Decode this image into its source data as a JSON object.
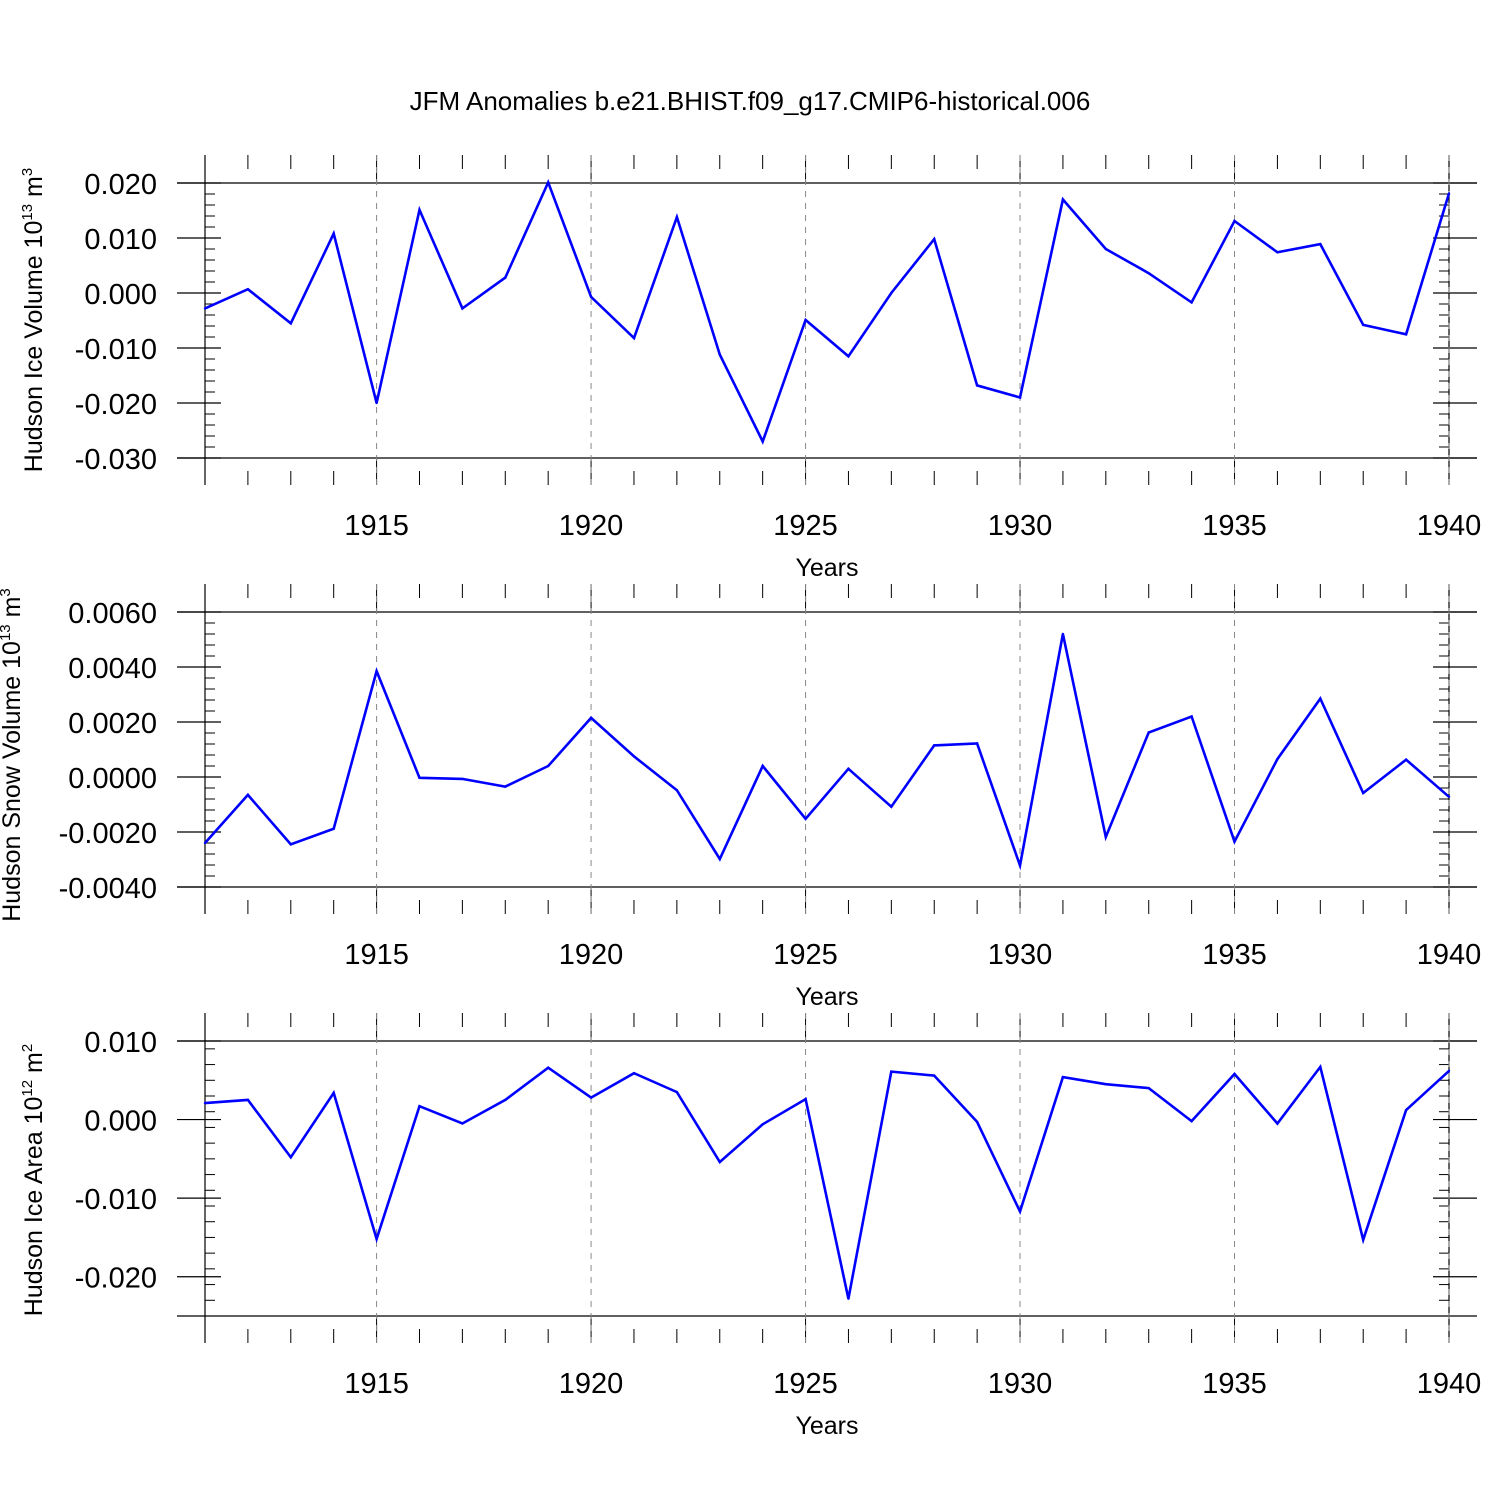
{
  "title": "JFM Anomalies b.e21.BHIST.f09_g17.CMIP6-historical.006",
  "colors": {
    "series": "#0000ff",
    "axis": "#000000",
    "grid": "#888888"
  },
  "chart_data": [
    {
      "type": "line",
      "xlabel": "Years",
      "ylabel": {
        "main": "Hudson Ice Volume 10",
        "exp": "13",
        "unit": " m",
        "unit_exp": "3"
      },
      "xlim": [
        1911,
        1940
      ],
      "ylim": [
        -0.03,
        0.02
      ],
      "xticks": [
        1915,
        1920,
        1925,
        1930,
        1935,
        1940
      ],
      "xtick_labels": [
        "1915",
        "1920",
        "1925",
        "1930",
        "1935",
        "1940"
      ],
      "yticks": [
        -0.03,
        -0.02,
        -0.01,
        0.0,
        0.01,
        0.02
      ],
      "ytick_labels": [
        "-0.030",
        "-0.020",
        "-0.010",
        "0.000",
        "0.010",
        "0.020"
      ],
      "grid": "dashed vertical at labeled years",
      "series": [
        {
          "name": "Hudson Ice Volume",
          "x": [
            1911,
            1912,
            1913,
            1914,
            1915,
            1916,
            1917,
            1918,
            1919,
            1920,
            1921,
            1922,
            1923,
            1924,
            1925,
            1926,
            1927,
            1928,
            1929,
            1930,
            1931,
            1932,
            1933,
            1934,
            1935,
            1936,
            1937,
            1938,
            1939,
            1940
          ],
          "values": [
            -0.0028,
            0.0007,
            -0.0055,
            0.0108,
            -0.02,
            0.0151,
            -0.0028,
            0.0028,
            0.0201,
            -0.0007,
            -0.0082,
            0.0138,
            -0.0112,
            -0.027,
            -0.0049,
            -0.0115,
            0.0,
            0.0098,
            -0.0168,
            -0.019,
            0.017,
            0.008,
            0.0036,
            -0.0017,
            0.0131,
            0.0074,
            0.0089,
            -0.0058,
            -0.0075,
            0.0181
          ]
        }
      ]
    },
    {
      "type": "line",
      "xlabel": "Years",
      "ylabel": {
        "main": "Hudson Snow Volume 10",
        "exp": "13",
        "unit": " m",
        "unit_exp": "3"
      },
      "xlim": [
        1911,
        1940
      ],
      "ylim": [
        -0.004,
        0.006
      ],
      "xticks": [
        1915,
        1920,
        1925,
        1930,
        1935,
        1940
      ],
      "xtick_labels": [
        "1915",
        "1920",
        "1925",
        "1930",
        "1935",
        "1940"
      ],
      "yticks": [
        -0.004,
        -0.002,
        0.0,
        0.002,
        0.004,
        0.006
      ],
      "ytick_labels": [
        "-0.0040",
        "-0.0020",
        "0.0000",
        "0.0020",
        "0.0040",
        "0.0060"
      ],
      "grid": "dashed vertical at labeled years",
      "series": [
        {
          "name": "Hudson Snow Volume",
          "x": [
            1911,
            1912,
            1913,
            1914,
            1915,
            1916,
            1917,
            1918,
            1919,
            1920,
            1921,
            1922,
            1923,
            1924,
            1925,
            1926,
            1927,
            1928,
            1929,
            1930,
            1931,
            1932,
            1933,
            1934,
            1935,
            1936,
            1937,
            1938,
            1939,
            1940
          ],
          "values": [
            -0.0024,
            -0.00065,
            -0.00245,
            -0.00188,
            0.00385,
            -3e-05,
            -7e-05,
            -0.00035,
            0.0004,
            0.00215,
            0.00075,
            -0.00048,
            -0.00298,
            0.0004,
            -0.00152,
            0.0003,
            -0.00108,
            0.00115,
            0.00122,
            -0.00322,
            0.0052,
            -0.00218,
            0.00162,
            0.0022,
            -0.00235,
            0.00065,
            0.00285,
            -0.00058,
            0.00063,
            -0.00072
          ]
        }
      ]
    },
    {
      "type": "line",
      "xlabel": "Years",
      "ylabel": {
        "main": "Hudson Ice Area 10",
        "exp": "12",
        "unit": " m",
        "unit_exp": "2"
      },
      "xlim": [
        1911,
        1940
      ],
      "ylim": [
        -0.025,
        0.01
      ],
      "xticks": [
        1915,
        1920,
        1925,
        1930,
        1935,
        1940
      ],
      "xtick_labels": [
        "1915",
        "1920",
        "1925",
        "1930",
        "1935",
        "1940"
      ],
      "yticks": [
        -0.02,
        -0.01,
        0.0,
        0.01
      ],
      "ytick_labels": [
        "-0.020",
        "-0.010",
        "0.000",
        "0.010"
      ],
      "grid": "dashed vertical at labeled years",
      "series": [
        {
          "name": "Hudson Ice Area",
          "x": [
            1911,
            1912,
            1913,
            1914,
            1915,
            1916,
            1917,
            1918,
            1919,
            1920,
            1921,
            1922,
            1923,
            1924,
            1925,
            1926,
            1927,
            1928,
            1929,
            1930,
            1931,
            1932,
            1933,
            1934,
            1935,
            1936,
            1937,
            1938,
            1939,
            1940
          ],
          "values": [
            0.0021,
            0.0025,
            -0.0048,
            0.0034,
            -0.0152,
            0.0017,
            -0.0005,
            0.0025,
            0.0066,
            0.0028,
            0.0059,
            0.0035,
            -0.0054,
            -0.0006,
            0.0026,
            -0.0228,
            0.0061,
            0.0056,
            -0.0003,
            -0.0117,
            0.0054,
            0.0045,
            0.004,
            -0.0002,
            0.0058,
            -0.0005,
            0.0067,
            -0.0153,
            0.0012,
            0.0062
          ]
        }
      ]
    }
  ]
}
